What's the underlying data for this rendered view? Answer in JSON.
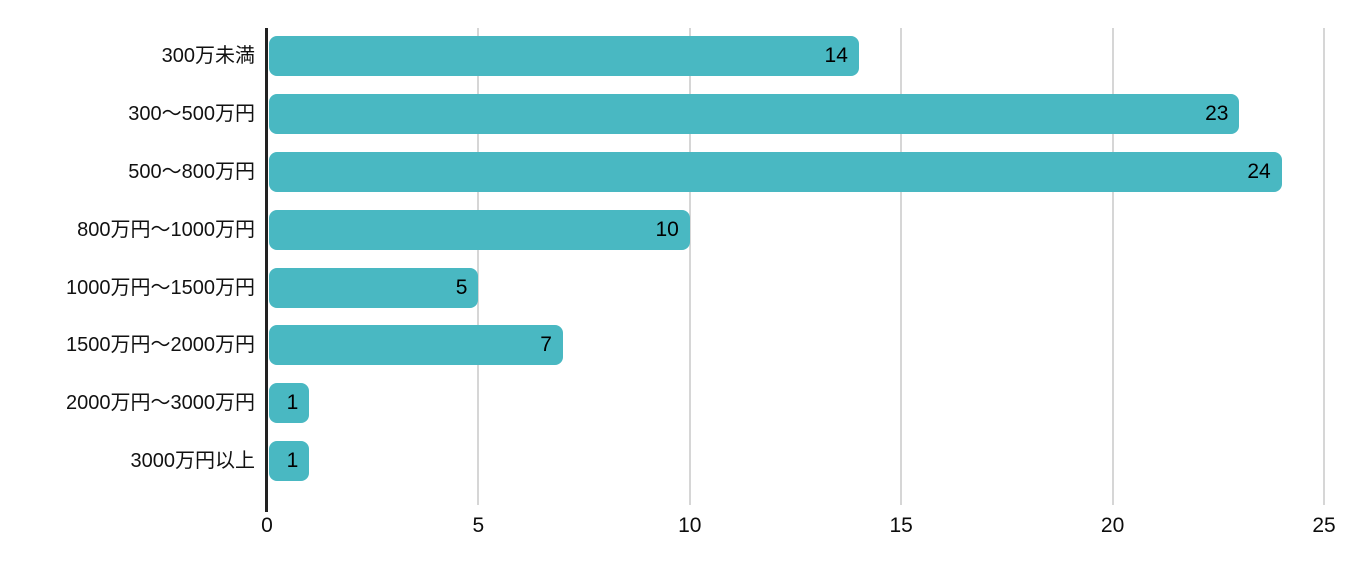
{
  "chart_data": {
    "type": "bar",
    "orientation": "horizontal",
    "title": "",
    "xlabel": "",
    "ylabel": "",
    "categories": [
      "300万未満",
      "300〜500万円",
      "500〜800万円",
      "800万円〜1000万円",
      "1000万円〜1500万円",
      "1500万円〜2000万円",
      "2000万円〜3000万円",
      "3000万円以上"
    ],
    "values": [
      14,
      23,
      24,
      10,
      5,
      7,
      1,
      1
    ],
    "value_labels": [
      "14",
      "23",
      "24",
      "10",
      "5",
      "7",
      "1",
      "1"
    ],
    "xlim": [
      0,
      25
    ],
    "x_ticks": [
      "0",
      "5",
      "10",
      "15",
      "20",
      "25"
    ],
    "x_tick_values": [
      0,
      5,
      10,
      15,
      20,
      25
    ],
    "grid": "vertical-major-only",
    "legend": "none",
    "colors": {
      "bar": "#49b8c2",
      "gridline": "#d6d6d6",
      "axis_line": "#212121",
      "value_label": "#000000",
      "category_label": "#111111",
      "tick_label": "#0d0d0d",
      "background": "#ffffff"
    }
  }
}
